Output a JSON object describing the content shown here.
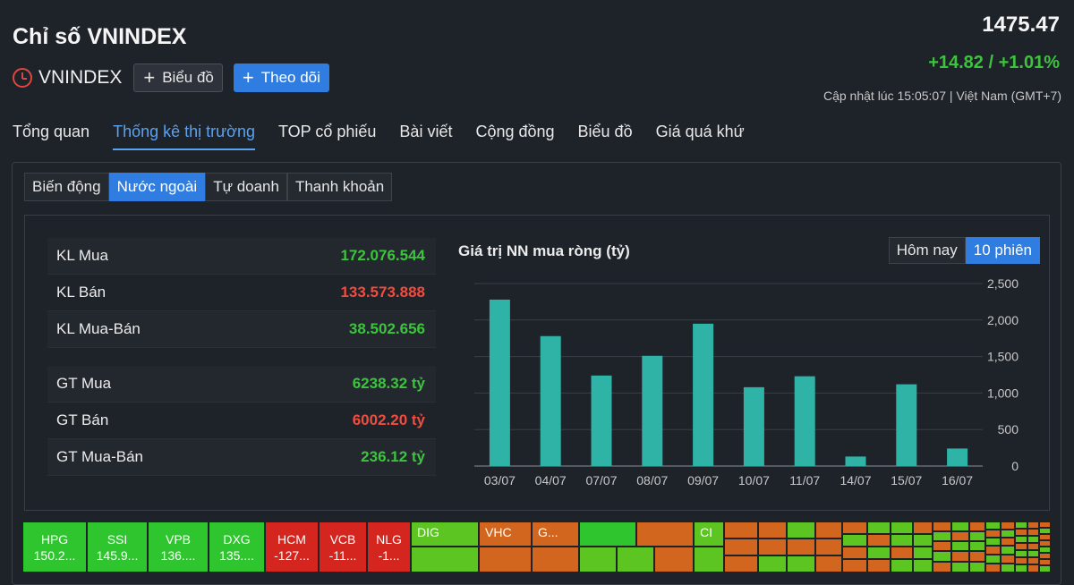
{
  "header": {
    "title": "Chỉ số VNINDEX",
    "symbol": "VNINDEX",
    "chart_button": "Biểu đồ",
    "follow_button": "Theo dõi",
    "price": "1475.47",
    "change": "+14.82 / +1.01%",
    "updated": "Cập nhật lúc  15:05:07 | Việt Nam (GMT+7)"
  },
  "tabs": [
    "Tổng quan",
    "Thống kê thị trường",
    "TOP cổ phiếu",
    "Bài viết",
    "Cộng đồng",
    "Biểu đồ",
    "Giá quá khứ"
  ],
  "subtabs": [
    "Biến động",
    "Nước ngoài",
    "Tự doanh",
    "Thanh khoản"
  ],
  "stats": [
    {
      "label": "KL Mua",
      "value": "172.076.544",
      "color": "#3cc43c"
    },
    {
      "label": "KL Bán",
      "value": "133.573.888",
      "color": "#ef4d40"
    },
    {
      "label": "KL Mua-Bán",
      "value": "38.502.656",
      "color": "#3cc43c"
    },
    {
      "label": "GT Mua",
      "value": "6238.32 tỷ",
      "color": "#3cc43c"
    },
    {
      "label": "GT Bán",
      "value": "6002.20 tỷ",
      "color": "#ef4d40"
    },
    {
      "label": "GT Mua-Bán",
      "value": "236.12 tỷ",
      "color": "#3cc43c"
    }
  ],
  "chart_toggle": [
    "Hôm nay",
    "10 phiên"
  ],
  "chart_data": {
    "type": "bar",
    "title": "Giá trị NN mua ròng (tỷ)",
    "categories": [
      "03/07",
      "04/07",
      "07/07",
      "08/07",
      "09/07",
      "10/07",
      "11/07",
      "14/07",
      "15/07",
      "16/07"
    ],
    "values": [
      2280,
      1780,
      1240,
      1510,
      1950,
      1080,
      1230,
      130,
      1120,
      240
    ],
    "yticks": [
      "2,500",
      "2,000",
      "1,500",
      "1,000",
      "500",
      "0"
    ],
    "ylim": [
      0,
      2500
    ],
    "bar_color": "#2fb3a6",
    "xlabel": "",
    "ylabel": ""
  },
  "treemap": [
    {
      "sym": "HPG",
      "val": "150.2...",
      "color": "#2fc52f"
    },
    {
      "sym": "SSI",
      "val": "145.9...",
      "color": "#2fc52f"
    },
    {
      "sym": "VPB",
      "val": "136....",
      "color": "#2fc52f"
    },
    {
      "sym": "DXG",
      "val": "135....",
      "color": "#2fc52f"
    },
    {
      "sym": "HCM",
      "val": "-127...",
      "color": "#d4251f"
    },
    {
      "sym": "VCB",
      "val": "-11...",
      "color": "#d4251f"
    },
    {
      "sym": "NLG",
      "val": "-1...",
      "color": "#d4251f"
    },
    {
      "sym": "DIG",
      "val": "",
      "color": "#5cc521"
    },
    {
      "sym": "VHC",
      "val": "",
      "color": "#d2661f"
    },
    {
      "sym": "G...",
      "val": "",
      "color": "#d2661f"
    },
    {
      "sym": "CI",
      "val": "",
      "color": "#5cc521"
    }
  ]
}
